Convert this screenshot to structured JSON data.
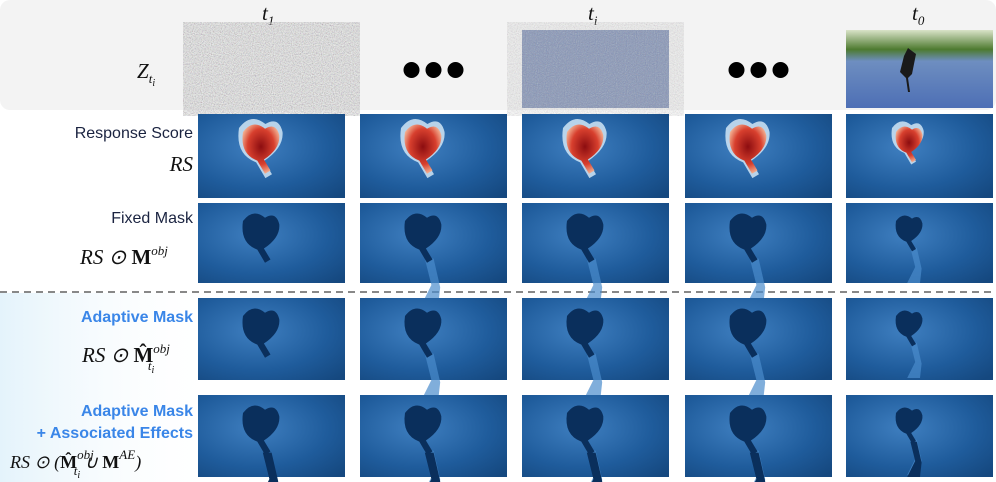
{
  "columns": [
    {
      "base": "t",
      "sub": "1"
    },
    {
      "base": "t",
      "sub": "i"
    },
    {
      "base": "t",
      "sub": "0"
    }
  ],
  "rows": [
    {
      "formula": {
        "base": "Z",
        "sub": "t",
        "subsub": "i"
      }
    },
    {
      "label": "Response Score",
      "formula": "RS"
    },
    {
      "label": "Fixed Mask",
      "formula": {
        "left": "RS ⊙ ",
        "base": "M",
        "sup": "obj"
      }
    },
    {
      "label": "Adaptive Mask",
      "formula": {
        "left": "RS ⊙ ",
        "base": "M̂",
        "sup": "obj",
        "sub": "t",
        "subsub": "i"
      }
    },
    {
      "label": [
        "Adaptive Mask",
        "+ Associated Effects"
      ],
      "formula": {
        "left": "RS ⊙ (",
        "base": "M̂",
        "sup": "obj",
        "sub": "t",
        "subsub": "i",
        "mid": " ∪ ",
        "base2": "M",
        "sup2": "AE",
        "right": ")"
      }
    }
  ]
}
